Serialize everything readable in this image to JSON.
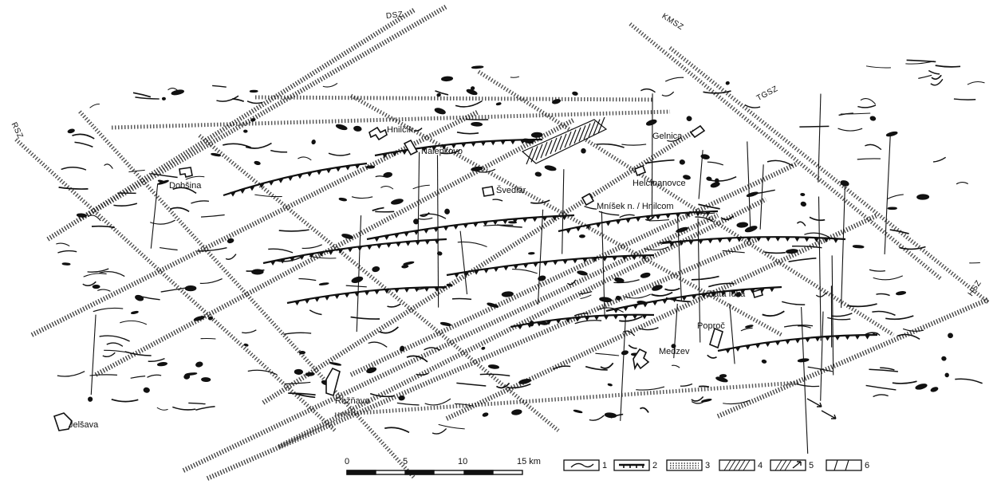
{
  "zones": {
    "dsz": "DSZ",
    "kmsz": "KMSZ",
    "tgsz": "TGSZ",
    "rsz": "RSZ",
    "hsz": "HSZ"
  },
  "towns": {
    "hnilcik": "Hnilčík",
    "nalepkovo": "Nálepkovo",
    "gelnica": "Gelnica",
    "dobsina": "Dobšina",
    "svedlar": "Švedlár",
    "helcmanovce": "Helcmanovce",
    "mnisek": "Mníšek n. / Hnilcom",
    "zlata_idka": "Zlatá Idka",
    "poproc": "Poproč",
    "medzev": "Medzev",
    "roznava": "Rožňava",
    "jelsava": "Jelšava"
  },
  "scale": {
    "ticks": [
      "0",
      "5",
      "10",
      "15 km"
    ]
  },
  "legend": {
    "numbers": [
      "1",
      "2",
      "3",
      "4",
      "5",
      "6"
    ]
  }
}
